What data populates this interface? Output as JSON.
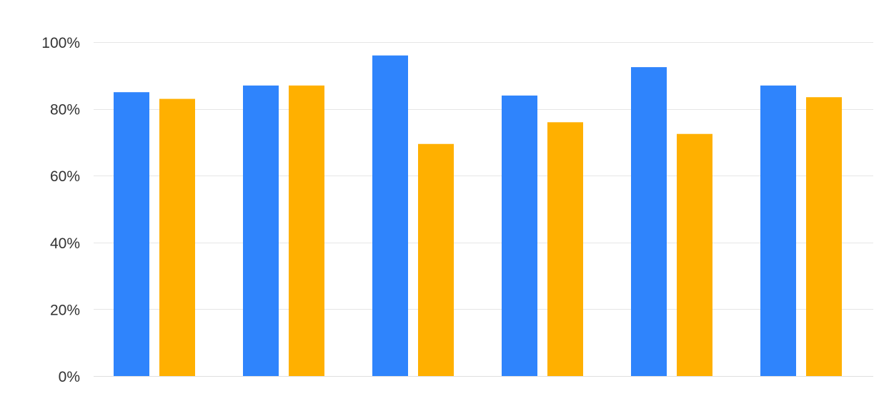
{
  "chart_data": {
    "type": "bar",
    "title": "",
    "xlabel": "",
    "ylabel": "",
    "ylim": [
      0,
      100
    ],
    "y_ticks": [
      0,
      20,
      40,
      60,
      80,
      100
    ],
    "y_tick_labels": [
      "0%",
      "20%",
      "40%",
      "60%",
      "80%",
      "100%"
    ],
    "grid": true,
    "legend": "none",
    "categories": [
      "",
      "",
      "",
      "",
      "",
      ""
    ],
    "series": [
      {
        "color": "#2f84fc",
        "values": [
          85,
          87,
          96,
          84,
          92.5,
          87
        ]
      },
      {
        "color": "#ffb000",
        "values": [
          83,
          87,
          69.5,
          76,
          72.5,
          83.5
        ]
      }
    ]
  }
}
